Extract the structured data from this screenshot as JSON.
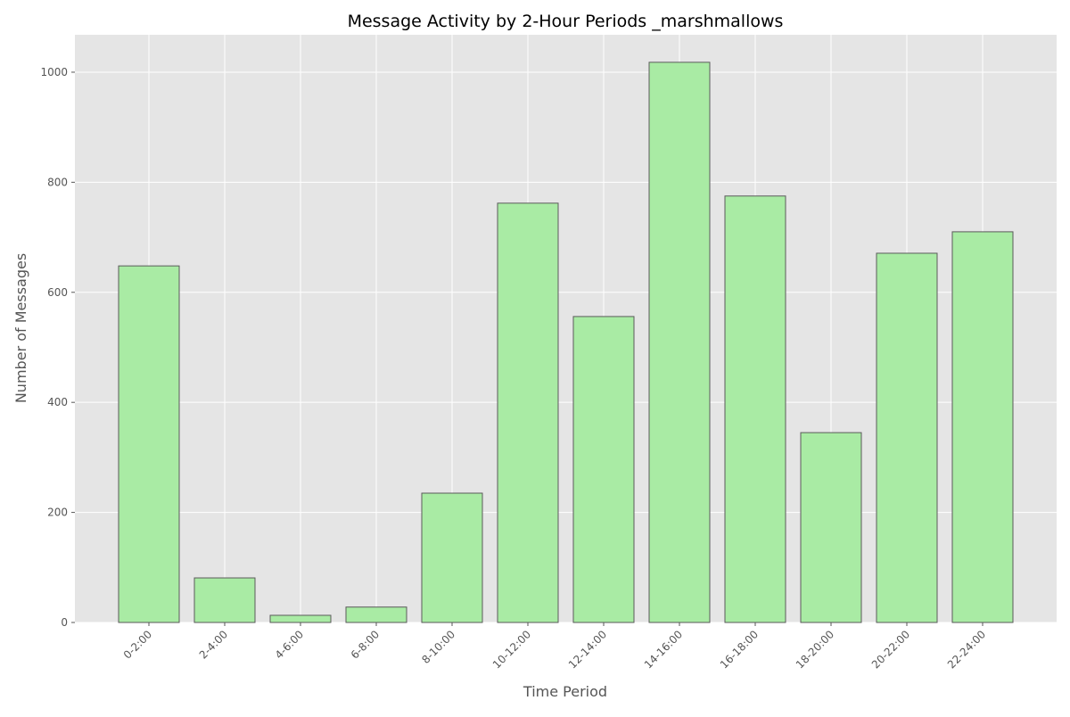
{
  "chart_data": {
    "type": "bar",
    "title": "Message Activity by 2-Hour Periods _marshmallows",
    "xlabel": "Time Period",
    "ylabel": "Number of Messages",
    "categories": [
      "0-2:00",
      "2-4:00",
      "4-6:00",
      "6-8:00",
      "8-10:00",
      "10-12:00",
      "12-14:00",
      "14-16:00",
      "16-18:00",
      "18-20:00",
      "20-22:00",
      "22-24:00"
    ],
    "values": [
      648,
      81,
      13,
      28,
      235,
      762,
      556,
      1018,
      775,
      345,
      671,
      710
    ],
    "ylim": [
      0,
      1068
    ],
    "yticks": [
      0,
      200,
      400,
      600,
      800,
      1000
    ],
    "grid": true,
    "legend": "none",
    "colors": {
      "bar_fill": "#a9eba4",
      "bar_edge": "#5a5a5a",
      "plot_background": "#e5e5e5",
      "grid": "#ffffff"
    }
  }
}
